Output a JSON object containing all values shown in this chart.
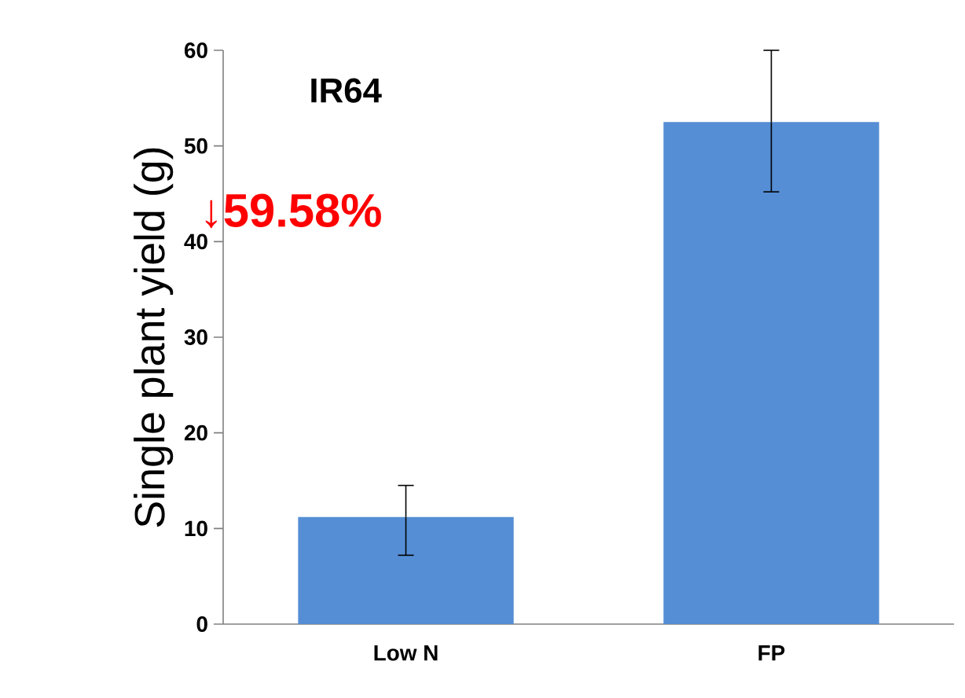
{
  "chart_data": {
    "type": "bar",
    "title": "IR64",
    "ylabel": "Single plant yield (g)",
    "categories": [
      "Low N",
      "FP"
    ],
    "values": [
      11.2,
      52.5
    ],
    "errors": [
      [
        7.2,
        14.5
      ],
      [
        45.2,
        60
      ]
    ],
    "color": "#558ed5",
    "ylim": [
      0,
      60
    ],
    "yticks": [
      0,
      10,
      20,
      30,
      40,
      50,
      60
    ],
    "annotations": [
      "↓59.58%"
    ]
  }
}
